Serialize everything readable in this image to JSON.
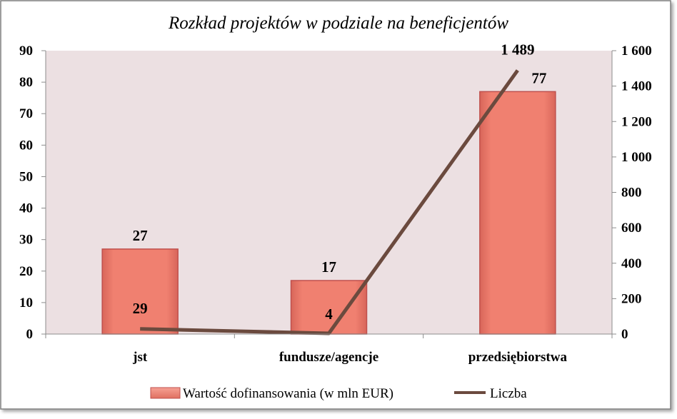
{
  "chart_data": {
    "type": "bar",
    "title": "Rozkład projektów w podziale na beneficjentów",
    "categories": [
      "jst",
      "fundusze/agencje",
      "przedsiębiorstwa"
    ],
    "series": [
      {
        "name": "Wartość dofinansowania (w mln EUR)",
        "type": "bar",
        "axis": "left",
        "values": [
          27,
          17,
          77
        ],
        "labels": [
          "27",
          "17",
          "77"
        ]
      },
      {
        "name": "Liczba",
        "type": "line",
        "axis": "right",
        "values": [
          29,
          4,
          1489
        ],
        "labels": [
          "29",
          "4",
          "1 489"
        ]
      }
    ],
    "y_left": {
      "ylim": [
        0,
        90
      ],
      "ticks": [
        "0",
        "10",
        "20",
        "30",
        "40",
        "50",
        "60",
        "70",
        "80",
        "90"
      ]
    },
    "y_right": {
      "ylim": [
        0,
        1600
      ],
      "ticks": [
        "0",
        "200",
        "400",
        "600",
        "800",
        "1 000",
        "1 200",
        "1 400",
        "1 600"
      ]
    },
    "legend": {
      "position": "bottom",
      "items": [
        "Wartość dofinansowania (w mln EUR)",
        "Liczba"
      ]
    },
    "grid": false,
    "colors": {
      "bar_fill": "#f08070",
      "bar_highlight": "#f6a194",
      "bar_stroke": "#c0504d",
      "line": "#6b4a3e",
      "plot_bg": "#ece0e2",
      "border": "#8a8a8a"
    }
  }
}
